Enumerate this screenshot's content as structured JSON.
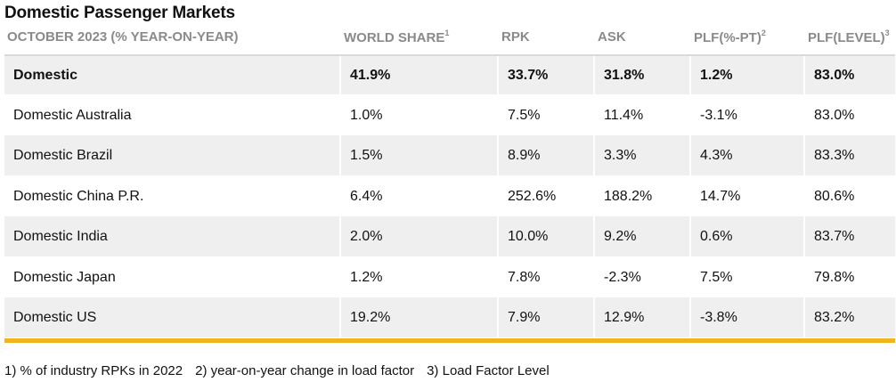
{
  "title": "Domestic Passenger Markets",
  "headers": {
    "market": "OCTOBER 2023 (% YEAR-ON-YEAR)",
    "world_share": "WORLD SHARE",
    "world_share_sup": "1",
    "rpk": "RPK",
    "ask": "ASK",
    "plf_pt": "PLF(%-PT)",
    "plf_pt_sup": "2",
    "plf_level": "PLF(LEVEL)",
    "plf_level_sup": "3"
  },
  "rows": [
    {
      "market": "Domestic",
      "world_share": "41.9%",
      "rpk": "33.7%",
      "ask": "31.8%",
      "plf_pt": "1.2%",
      "plf_level": "83.0%"
    },
    {
      "market": "Domestic Australia",
      "world_share": "1.0%",
      "rpk": "7.5%",
      "ask": "11.4%",
      "plf_pt": "-3.1%",
      "plf_level": "83.0%"
    },
    {
      "market": "Domestic Brazil",
      "world_share": "1.5%",
      "rpk": "8.9%",
      "ask": "3.3%",
      "plf_pt": "4.3%",
      "plf_level": "83.3%"
    },
    {
      "market": "Domestic China P.R.",
      "world_share": "6.4%",
      "rpk": "252.6%",
      "ask": "188.2%",
      "plf_pt": "14.7%",
      "plf_level": "80.6%"
    },
    {
      "market": "Domestic India",
      "world_share": "2.0%",
      "rpk": "10.0%",
      "ask": "9.2%",
      "plf_pt": "0.6%",
      "plf_level": "83.7%"
    },
    {
      "market": "Domestic Japan",
      "world_share": "1.2%",
      "rpk": "7.8%",
      "ask": "-2.3%",
      "plf_pt": "7.5%",
      "plf_level": "79.8%"
    },
    {
      "market": "Domestic US",
      "world_share": "19.2%",
      "rpk": "7.9%",
      "ask": "12.9%",
      "plf_pt": "-3.8%",
      "plf_level": "83.2%"
    }
  ],
  "footnotes": [
    "1) % of industry RPKs in 2022",
    "2) year-on-year change in load factor",
    "3) Load Factor Level"
  ],
  "colors": {
    "accent_bar": "#f0b51e",
    "row_shade": "#efefef",
    "header_text": "#8a8a8a"
  }
}
